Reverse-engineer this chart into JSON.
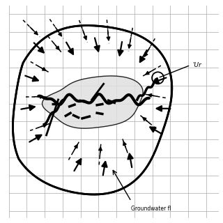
{
  "background_color": "#ffffff",
  "grid_color": "#aaaaaa",
  "grid_lw": 0.5,
  "fig_width": 3.2,
  "fig_height": 3.2,
  "dpi": 100,
  "solid_arrows": [
    [
      0.06,
      0.82,
      225,
      0.1
    ],
    [
      0.1,
      0.64,
      225,
      0.1
    ],
    [
      0.04,
      0.5,
      0,
      0.09
    ],
    [
      0.07,
      0.36,
      315,
      0.09
    ],
    [
      0.13,
      0.22,
      330,
      0.09
    ],
    [
      0.32,
      0.14,
      45,
      0.09
    ],
    [
      0.5,
      0.14,
      70,
      0.09
    ],
    [
      0.64,
      0.18,
      90,
      0.09
    ],
    [
      0.76,
      0.3,
      135,
      0.09
    ],
    [
      0.81,
      0.5,
      180,
      0.09
    ],
    [
      0.76,
      0.68,
      210,
      0.09
    ],
    [
      0.66,
      0.8,
      230,
      0.09
    ],
    [
      0.5,
      0.86,
      250,
      0.09
    ],
    [
      0.35,
      0.86,
      260,
      0.09
    ],
    [
      0.2,
      0.82,
      270,
      0.09
    ]
  ],
  "dashed_arrows": [
    [
      0.14,
      0.76,
      225,
      0.12
    ],
    [
      0.2,
      0.68,
      225,
      0.12
    ],
    [
      0.28,
      0.6,
      240,
      0.12
    ],
    [
      0.14,
      0.55,
      10,
      0.1
    ],
    [
      0.12,
      0.42,
      340,
      0.1
    ],
    [
      0.2,
      0.3,
      330,
      0.1
    ],
    [
      0.35,
      0.22,
      45,
      0.1
    ],
    [
      0.48,
      0.22,
      60,
      0.1
    ],
    [
      0.6,
      0.26,
      100,
      0.1
    ],
    [
      0.7,
      0.38,
      140,
      0.1
    ],
    [
      0.72,
      0.52,
      180,
      0.1
    ],
    [
      0.68,
      0.64,
      210,
      0.1
    ],
    [
      0.6,
      0.73,
      225,
      0.1
    ],
    [
      0.5,
      0.78,
      250,
      0.1
    ],
    [
      0.38,
      0.78,
      255,
      0.1
    ],
    [
      0.26,
      0.74,
      265,
      0.1
    ]
  ]
}
